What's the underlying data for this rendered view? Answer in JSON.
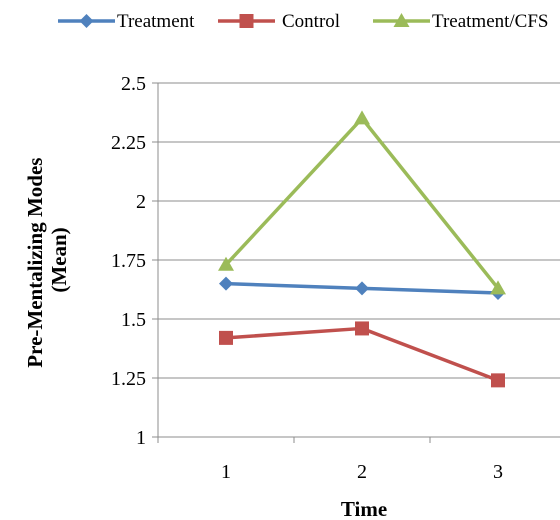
{
  "chart_data": {
    "type": "line",
    "title": "",
    "xlabel": "Time",
    "ylabel_lines": [
      "Pre-Mentalizing Modes",
      "(Mean)"
    ],
    "categories": [
      "1",
      "2",
      "3"
    ],
    "ylim": [
      1,
      2.5
    ],
    "yticks": [
      "1",
      "1.25",
      "1.5",
      "1.75",
      "2",
      "2.25",
      "2.5"
    ],
    "grid": true,
    "legend_position": "top",
    "series": [
      {
        "name": "Treatment",
        "color": "#4f81bd",
        "marker": "diamond",
        "values": [
          1.65,
          1.63,
          1.61
        ]
      },
      {
        "name": "Control",
        "color": "#c0504d",
        "marker": "square",
        "values": [
          1.42,
          1.46,
          1.24
        ]
      },
      {
        "name": "Treatment/CFS",
        "color": "#9bbb59",
        "marker": "triangle",
        "values": [
          1.73,
          2.35,
          1.63
        ]
      }
    ]
  }
}
